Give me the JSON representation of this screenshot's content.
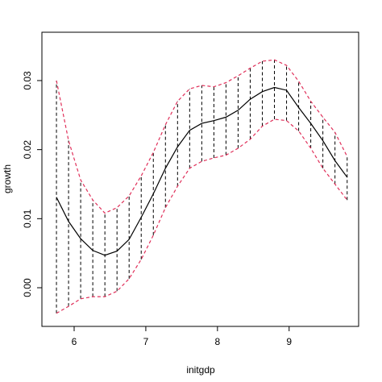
{
  "chart_data": {
    "type": "line",
    "x_label": "initgdp",
    "y_label": "growth",
    "x": [
      5.753,
      5.922,
      6.091,
      6.26,
      6.429,
      6.598,
      6.767,
      6.936,
      7.105,
      7.274,
      7.443,
      7.612,
      7.781,
      7.95,
      8.119,
      8.288,
      8.457,
      8.626,
      8.795,
      8.964,
      9.133,
      9.302,
      9.471,
      9.64,
      9.81
    ],
    "series": [
      {
        "color": "#000000",
        "dashed": false,
        "values": [
          0.0131,
          0.0096,
          0.0071,
          0.0054,
          0.0047,
          0.0053,
          0.007,
          0.0102,
          0.0136,
          0.0173,
          0.0204,
          0.0228,
          0.0238,
          0.0242,
          0.0247,
          0.0257,
          0.0273,
          0.0284,
          0.029,
          0.0286,
          0.0261,
          0.0238,
          0.0213,
          0.0184,
          0.016
        ]
      },
      {
        "color": "#e0305a",
        "dashed": true,
        "values": [
          0.03,
          0.0213,
          0.0156,
          0.0127,
          0.0108,
          0.0116,
          0.0133,
          0.0162,
          0.0196,
          0.0236,
          0.027,
          0.0288,
          0.0293,
          0.0291,
          0.0297,
          0.0307,
          0.0318,
          0.0328,
          0.033,
          0.0322,
          0.0299,
          0.027,
          0.0247,
          0.0225,
          0.019
        ]
      },
      {
        "color": "#e0305a",
        "dashed": true,
        "values": [
          -0.0037,
          -0.0027,
          -0.0016,
          -0.0013,
          -0.0013,
          -0.0005,
          0.0013,
          0.0041,
          0.0076,
          0.0116,
          0.0147,
          0.0173,
          0.0183,
          0.0188,
          0.0192,
          0.0202,
          0.0215,
          0.0234,
          0.0244,
          0.0242,
          0.0227,
          0.0202,
          0.0173,
          0.015,
          0.0127
        ]
      }
    ],
    "band_segments": true,
    "xlim": [
      5.55,
      9.97
    ],
    "ylim": [
      -0.0056,
      0.037
    ],
    "xticks": [
      6,
      7,
      8,
      9
    ],
    "yticks": [
      {
        "value": 0,
        "label": "0.00"
      },
      {
        "value": 0.01,
        "label": "0.01"
      },
      {
        "value": 0.02,
        "label": "0.02"
      },
      {
        "value": 0.03,
        "label": "0.03"
      }
    ]
  }
}
